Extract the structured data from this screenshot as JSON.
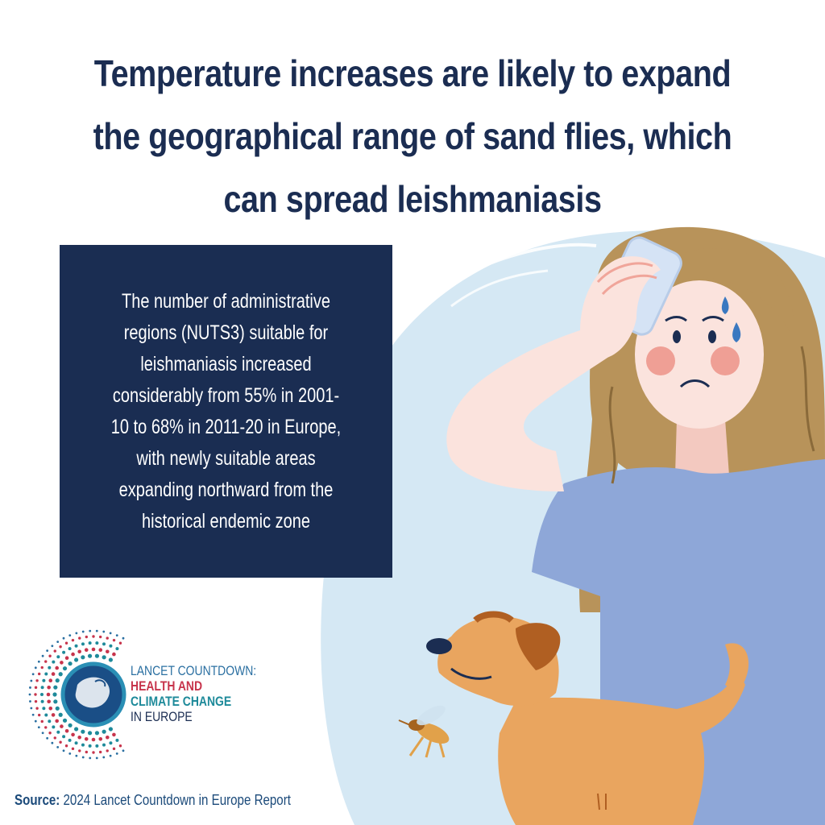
{
  "headline": {
    "line1": "Temperature increases are likely to expand",
    "line2": "the geographical range of sand flies, which",
    "line3": "can spread leishmaniasis"
  },
  "infobox": {
    "line1": "The number of administrative",
    "line2": "regions (NUTS3) suitable for",
    "line3": "leishmaniasis increased",
    "line4": "considerably from 55% in 2001-",
    "line5": "10 to 68% in 2011-20 in Europe,",
    "line6": "with newly suitable areas",
    "line7": "expanding northward from the",
    "line8": "historical endemic zone"
  },
  "logo": {
    "line1": "LANCET COUNTDOWN:",
    "line2": "HEALTH AND",
    "line3": "CLIMATE CHANGE",
    "line4": "IN EUROPE"
  },
  "source": {
    "label": "Source:",
    "text": "2024 Lancet Countdown in Europe Report"
  },
  "colors": {
    "navy": "#1a2d52",
    "light_blue_blob": "#d5e8f4",
    "shirt": "#8ea7d8",
    "hair": "#b8935a",
    "skin": "#fbe3dd",
    "dog": "#e9a55f",
    "logo_red": "#c7344c",
    "logo_teal": "#1e8a9a",
    "logo_blue": "#2a6fa1"
  },
  "icons": [
    "woman-illustration",
    "dog-illustration",
    "sand-fly-illustration",
    "europe-globe-logo-icon"
  ]
}
